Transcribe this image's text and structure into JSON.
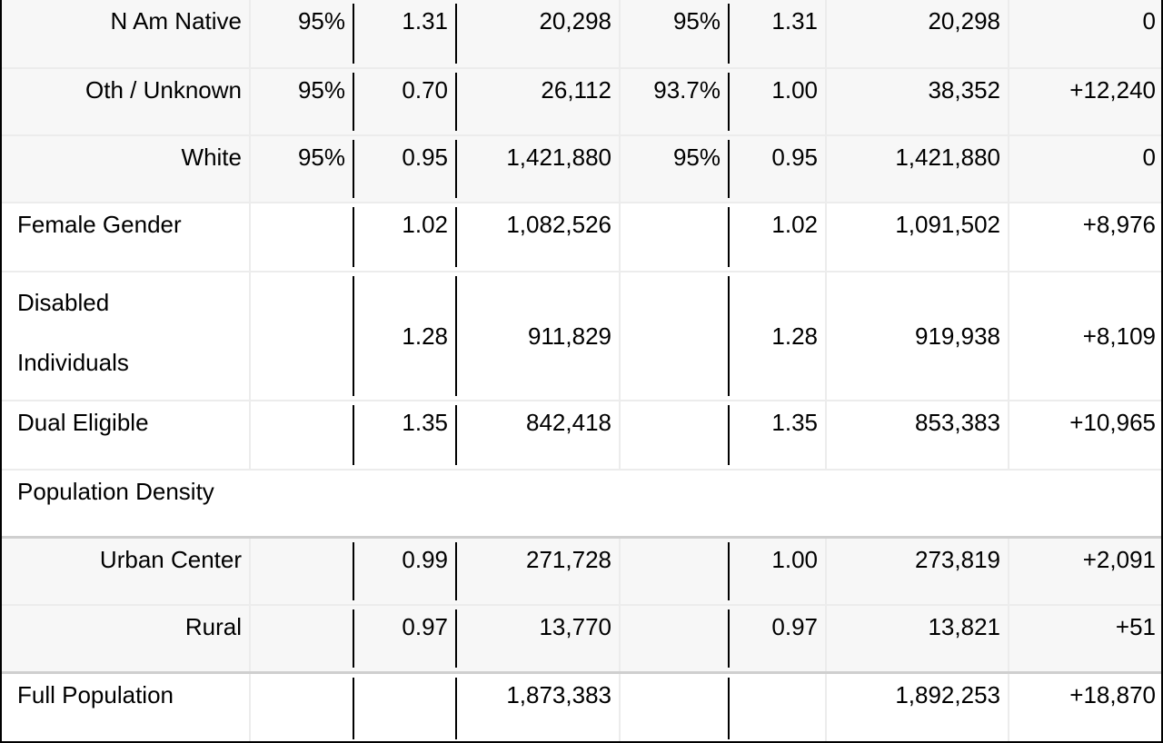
{
  "rows": [
    {
      "label": "N Am Native",
      "c1": "95%",
      "c2": "1.31",
      "c3": "20,298",
      "c4": "95%",
      "c5": "1.31",
      "c6": "20,298",
      "c7": "0"
    },
    {
      "label": "Oth / Unknown",
      "c1": "95%",
      "c2": "0.70",
      "c3": "26,112",
      "c4": "93.7%",
      "c5": "1.00",
      "c6": "38,352",
      "c7": "+12,240"
    },
    {
      "label": "White",
      "c1": "95%",
      "c2": "0.95",
      "c3": "1,421,880",
      "c4": "95%",
      "c5": "0.95",
      "c6": "1,421,880",
      "c7": "0"
    },
    {
      "label": "Female Gender",
      "c1": "",
      "c2": "1.02",
      "c3": "1,082,526",
      "c4": "",
      "c5": "1.02",
      "c6": "1,091,502",
      "c7": "+8,976"
    },
    {
      "label_line1": "Disabled",
      "label_line2": "Individuals",
      "c1": "",
      "c2": "1.28",
      "c3": "911,829",
      "c4": "",
      "c5": "1.28",
      "c6": "919,938",
      "c7": "+8,109"
    },
    {
      "label": "Dual Eligible",
      "c1": "",
      "c2": "1.35",
      "c3": "842,418",
      "c4": "",
      "c5": "1.35",
      "c6": "853,383",
      "c7": "+10,965"
    },
    {
      "label": "Population Density"
    },
    {
      "label": "Urban Center",
      "c1": "",
      "c2": "0.99",
      "c3": "271,728",
      "c4": "",
      "c5": "1.00",
      "c6": "273,819",
      "c7": "+2,091"
    },
    {
      "label": "Rural",
      "c1": "",
      "c2": "0.97",
      "c3": "13,770",
      "c4": "",
      "c5": "0.97",
      "c6": "13,821",
      "c7": "+51"
    },
    {
      "label": "Full Population",
      "c1": "",
      "c2": "",
      "c3": "1,873,383",
      "c4": "",
      "c5": "",
      "c6": "1,892,253",
      "c7": "+18,870"
    }
  ]
}
